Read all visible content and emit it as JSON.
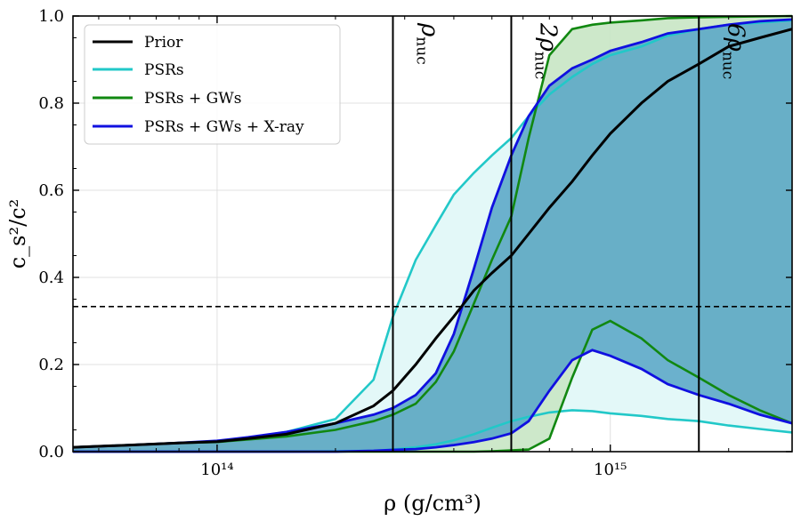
{
  "chart_data": {
    "type": "line",
    "title": "",
    "xlabel": "ρ (g/cm³)",
    "ylabel": "c_s²/c²",
    "xscale": "log",
    "xlim": [
      43000000000000.0,
      2900000000000000.0
    ],
    "ylim": [
      0.0,
      1.0
    ],
    "grid": true,
    "x_ticks": [
      {
        "value": 100000000000000.0,
        "label": "10¹⁴"
      },
      {
        "value": 1000000000000000.0,
        "label": "10¹⁵"
      }
    ],
    "y_ticks": [
      {
        "value": 0.0,
        "label": "0.0"
      },
      {
        "value": 0.2,
        "label": "0.2"
      },
      {
        "value": 0.4,
        "label": "0.4"
      },
      {
        "value": 0.6,
        "label": "0.6"
      },
      {
        "value": 0.8,
        "label": "0.8"
      },
      {
        "value": 1.0,
        "label": "1.0"
      }
    ],
    "hline": {
      "y": 0.333,
      "style": "dashed"
    },
    "vlines": [
      {
        "x": 280000000000000.0,
        "label_base": "ρ",
        "label_sub": "nuc"
      },
      {
        "x": 560000000000000.0,
        "label_base": "2ρ",
        "label_sub": "nuc"
      },
      {
        "x": 1680000000000000.0,
        "label_base": "6ρ",
        "label_sub": "nuc"
      }
    ],
    "legend": {
      "position": "top-left",
      "entries": [
        {
          "name": "Prior",
          "color": "#000000"
        },
        {
          "name": "PSRs",
          "color": "#22c8c8"
        },
        {
          "name": "PSRs + GWs",
          "color": "#118811"
        },
        {
          "name": "PSRs + GWs + X-ray",
          "color": "#1010e0"
        }
      ]
    },
    "x_grid": [
      43000000000000.0,
      60000000000000.0,
      80000000000000.0,
      100000000000000.0,
      120000000000000.0,
      150000000000000.0,
      200000000000000.0,
      250000000000000.0,
      280000000000000.0,
      320000000000000.0,
      360000000000000.0,
      400000000000000.0,
      450000000000000.0,
      500000000000000.0,
      560000000000000.0,
      620000000000000.0,
      700000000000000.0,
      800000000000000.0,
      900000000000000.0,
      1000000000000000.0,
      1200000000000000.0,
      1400000000000000.0,
      1680000000000000.0,
      2000000000000000.0,
      2400000000000000.0,
      2900000000000000.0
    ],
    "series": [
      {
        "name": "Prior",
        "color": "#000000",
        "kind": "median",
        "values": [
          0.01,
          0.015,
          0.02,
          0.023,
          0.03,
          0.04,
          0.065,
          0.105,
          0.14,
          0.2,
          0.26,
          0.31,
          0.37,
          0.41,
          0.45,
          0.5,
          0.56,
          0.62,
          0.68,
          0.73,
          0.8,
          0.85,
          0.89,
          0.93,
          0.95,
          0.97
        ]
      },
      {
        "name": "PSRs",
        "color": "#22c8c8",
        "kind": "band",
        "upper": [
          0.01,
          0.015,
          0.02,
          0.024,
          0.032,
          0.045,
          0.075,
          0.165,
          0.31,
          0.44,
          0.52,
          0.59,
          0.64,
          0.68,
          0.72,
          0.77,
          0.82,
          0.86,
          0.89,
          0.91,
          0.93,
          0.955,
          0.97,
          0.98,
          0.985,
          0.99
        ],
        "lower": [
          0.0,
          0.0,
          0.0,
          0.0,
          0.0,
          0.0,
          0.001,
          0.002,
          0.005,
          0.01,
          0.017,
          0.026,
          0.04,
          0.055,
          0.07,
          0.08,
          0.09,
          0.095,
          0.093,
          0.088,
          0.082,
          0.075,
          0.07,
          0.06,
          0.052,
          0.044
        ]
      },
      {
        "name": "PSRs + GWs",
        "color": "#118811",
        "kind": "band",
        "upper": [
          0.01,
          0.015,
          0.02,
          0.022,
          0.028,
          0.035,
          0.05,
          0.07,
          0.085,
          0.11,
          0.16,
          0.23,
          0.34,
          0.44,
          0.54,
          0.72,
          0.91,
          0.97,
          0.98,
          0.985,
          0.99,
          0.995,
          0.997,
          0.998,
          0.999,
          1.0
        ],
        "lower": [
          0.0,
          0.0,
          0.0,
          0.0,
          0.0,
          0.0,
          0.0,
          0.0,
          0.0,
          0.0,
          0.0,
          0.0,
          0.0,
          0.001,
          0.003,
          0.005,
          0.03,
          0.17,
          0.28,
          0.3,
          0.26,
          0.21,
          0.17,
          0.13,
          0.095,
          0.065
        ]
      },
      {
        "name": "PSRs + GWs + X-ray",
        "color": "#1010e0",
        "kind": "band",
        "upper": [
          0.01,
          0.015,
          0.02,
          0.025,
          0.033,
          0.045,
          0.065,
          0.085,
          0.1,
          0.13,
          0.18,
          0.27,
          0.42,
          0.56,
          0.68,
          0.77,
          0.84,
          0.88,
          0.9,
          0.92,
          0.94,
          0.96,
          0.97,
          0.98,
          0.988,
          0.992
        ]
      },
      {
        "name": "PSRs + GWs + X-ray lower",
        "color": "#1010e0",
        "kind": "band-lower",
        "lower": [
          0.0,
          0.0,
          0.0,
          0.0,
          0.0,
          0.0,
          0.0,
          0.002,
          0.004,
          0.006,
          0.01,
          0.015,
          0.022,
          0.03,
          0.042,
          0.07,
          0.14,
          0.21,
          0.233,
          0.22,
          0.19,
          0.155,
          0.13,
          0.11,
          0.085,
          0.065
        ]
      }
    ]
  }
}
